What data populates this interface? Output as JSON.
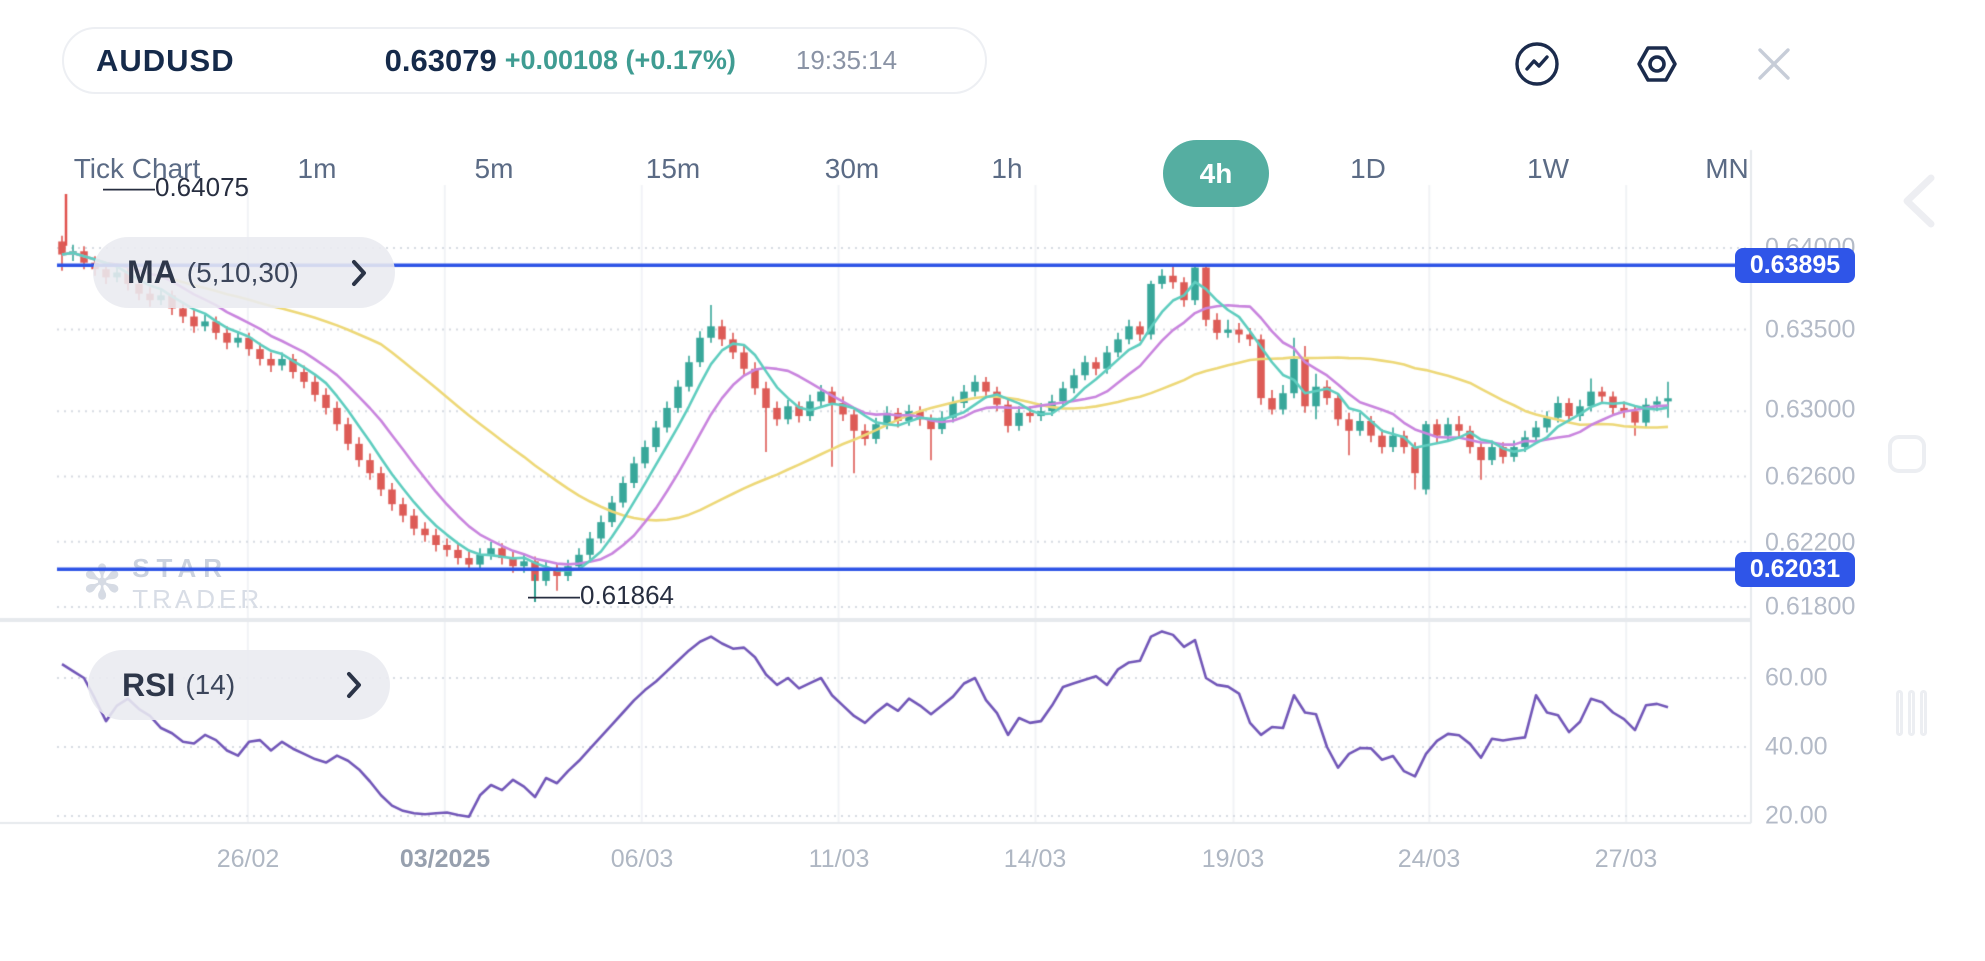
{
  "header": {
    "symbol": "AUDUSD",
    "price": "0.63079",
    "change": "+0.00108 (+0.17%)",
    "time": "19:35:14",
    "icons": [
      "trend-circle-icon",
      "settings-hex-icon",
      "close-icon"
    ]
  },
  "timeframes": {
    "items": [
      {
        "label": "Tick Chart",
        "active": false
      },
      {
        "label": "1m",
        "active": false
      },
      {
        "label": "5m",
        "active": false
      },
      {
        "label": "15m",
        "active": false
      },
      {
        "label": "30m",
        "active": false
      },
      {
        "label": "1h",
        "active": false
      },
      {
        "label": "4h",
        "active": true
      },
      {
        "label": "1D",
        "active": false
      },
      {
        "label": "1W",
        "active": false
      },
      {
        "label": "MN",
        "active": false
      }
    ]
  },
  "indicators": {
    "ma": {
      "name": "MA",
      "params": "(5,10,30)"
    },
    "rsi": {
      "name": "RSI",
      "params": "(14)"
    }
  },
  "watermark": {
    "star": "✻",
    "line1": "STAR",
    "line2": "TRADER"
  },
  "chart_data": {
    "type": "candlestick",
    "symbol": "AUDUSD",
    "timeframe": "4h",
    "annotations": {
      "high": "——0.64075",
      "low": "——0.61864",
      "high_value": 0.64075,
      "low_value": 0.61864
    },
    "price_ticks": [
      {
        "value": 0.64,
        "label": "0.64000"
      },
      {
        "value": 0.635,
        "label": "0.63500"
      },
      {
        "value": 0.63,
        "label": "0.63000"
      },
      {
        "value": 0.626,
        "label": "0.62600"
      },
      {
        "value": 0.622,
        "label": "0.62200"
      },
      {
        "value": 0.618,
        "label": "0.61800"
      }
    ],
    "h_lines": [
      {
        "value": 0.63895,
        "label": "0.63895"
      },
      {
        "value": 0.62031,
        "label": "0.62031"
      }
    ],
    "rsi_ticks": [
      {
        "value": 60,
        "label": "60.00"
      },
      {
        "value": 40,
        "label": "40.00"
      },
      {
        "value": 20,
        "label": "20.00"
      }
    ],
    "x_labels": [
      "26/02",
      "03/2025",
      "06/03",
      "11/03",
      "14/03",
      "19/03",
      "24/03",
      "27/03"
    ],
    "x_bold_index": 1,
    "x_tick_indices": [
      16.9,
      34.8,
      52.7,
      70.6,
      88.5,
      106.5,
      124.3,
      142.2
    ],
    "colors": {
      "up": "#38A79A",
      "down": "#DD5B56",
      "ma5": "#5FCDBF",
      "ma10": "#C985DE",
      "ma30": "#EDD878",
      "rsi": "#7257B8",
      "level_line": "#2E54E6",
      "grid_dot": "#D7DBE2",
      "grid_vert": "#F1F3F6",
      "axis": "#E6E9ED"
    },
    "ma_periods": [
      5,
      10,
      30
    ],
    "rsi_period": 14,
    "ohlc_fields": [
      "open",
      "high",
      "low",
      "close"
    ],
    "ohlc": [
      [
        0.6404,
        0.64075,
        0.6386,
        0.6396
      ],
      [
        0.6396,
        0.6402,
        0.6392,
        0.6398
      ],
      [
        0.6398,
        0.6401,
        0.6387,
        0.6391
      ],
      [
        0.6391,
        0.6395,
        0.6383,
        0.6387
      ],
      [
        0.6387,
        0.6391,
        0.6378,
        0.6382
      ],
      [
        0.6382,
        0.6389,
        0.6379,
        0.6385
      ],
      [
        0.6385,
        0.6388,
        0.6374,
        0.6378
      ],
      [
        0.6378,
        0.6382,
        0.6368,
        0.6372
      ],
      [
        0.6372,
        0.6376,
        0.6364,
        0.6368
      ],
      [
        0.6368,
        0.6375,
        0.6365,
        0.6371
      ],
      [
        0.6371,
        0.6374,
        0.6359,
        0.6363
      ],
      [
        0.6363,
        0.6367,
        0.6354,
        0.6358
      ],
      [
        0.6358,
        0.6362,
        0.6348,
        0.6352
      ],
      [
        0.6352,
        0.6359,
        0.6349,
        0.6355
      ],
      [
        0.6355,
        0.6358,
        0.6344,
        0.6348
      ],
      [
        0.6348,
        0.6352,
        0.6338,
        0.6342
      ],
      [
        0.6342,
        0.6349,
        0.6339,
        0.6345
      ],
      [
        0.6345,
        0.6348,
        0.6334,
        0.6338
      ],
      [
        0.6338,
        0.6342,
        0.6328,
        0.6332
      ],
      [
        0.6332,
        0.6336,
        0.6324,
        0.6328
      ],
      [
        0.6328,
        0.6336,
        0.6325,
        0.6332
      ],
      [
        0.6332,
        0.6335,
        0.632,
        0.6324
      ],
      [
        0.6324,
        0.6328,
        0.6314,
        0.6318
      ],
      [
        0.6318,
        0.6322,
        0.6306,
        0.631
      ],
      [
        0.631,
        0.6314,
        0.6298,
        0.6302
      ],
      [
        0.6302,
        0.6306,
        0.6288,
        0.6292
      ],
      [
        0.6292,
        0.6296,
        0.6276,
        0.628
      ],
      [
        0.628,
        0.6284,
        0.6266,
        0.627
      ],
      [
        0.627,
        0.6274,
        0.6258,
        0.6262
      ],
      [
        0.6262,
        0.6266,
        0.6248,
        0.6252
      ],
      [
        0.6252,
        0.6256,
        0.6239,
        0.6243
      ],
      [
        0.6243,
        0.6247,
        0.6232,
        0.6236
      ],
      [
        0.6236,
        0.624,
        0.6224,
        0.6228
      ],
      [
        0.6228,
        0.6232,
        0.622,
        0.6224
      ],
      [
        0.6224,
        0.6228,
        0.6214,
        0.6218
      ],
      [
        0.6218,
        0.6222,
        0.6211,
        0.6215
      ],
      [
        0.6215,
        0.6219,
        0.6206,
        0.621
      ],
      [
        0.621,
        0.6214,
        0.6202,
        0.6206
      ],
      [
        0.6206,
        0.6216,
        0.6203,
        0.6212
      ],
      [
        0.6212,
        0.622,
        0.6209,
        0.6216
      ],
      [
        0.6216,
        0.6219,
        0.6206,
        0.621
      ],
      [
        0.621,
        0.6214,
        0.6201,
        0.6205
      ],
      [
        0.6205,
        0.6212,
        0.6201,
        0.6208
      ],
      [
        0.6208,
        0.6211,
        0.61864,
        0.6196
      ],
      [
        0.6196,
        0.6208,
        0.6193,
        0.6204
      ],
      [
        0.6204,
        0.6207,
        0.619,
        0.6199
      ],
      [
        0.6199,
        0.6209,
        0.6196,
        0.6205
      ],
      [
        0.6205,
        0.6216,
        0.6202,
        0.6212
      ],
      [
        0.6212,
        0.6226,
        0.6209,
        0.6222
      ],
      [
        0.6222,
        0.6236,
        0.6219,
        0.6232
      ],
      [
        0.6232,
        0.6248,
        0.6229,
        0.6244
      ],
      [
        0.6244,
        0.626,
        0.6241,
        0.6256
      ],
      [
        0.6256,
        0.6272,
        0.6253,
        0.6268
      ],
      [
        0.6268,
        0.6282,
        0.6265,
        0.6278
      ],
      [
        0.6278,
        0.6294,
        0.6275,
        0.629
      ],
      [
        0.629,
        0.6306,
        0.6287,
        0.6302
      ],
      [
        0.6302,
        0.6319,
        0.6299,
        0.6315
      ],
      [
        0.6315,
        0.6334,
        0.6312,
        0.633
      ],
      [
        0.633,
        0.6349,
        0.6327,
        0.6345
      ],
      [
        0.6345,
        0.6365,
        0.6342,
        0.6352
      ],
      [
        0.6352,
        0.6356,
        0.634,
        0.6344
      ],
      [
        0.6344,
        0.6348,
        0.6332,
        0.6336
      ],
      [
        0.6336,
        0.634,
        0.6322,
        0.6326
      ],
      [
        0.6326,
        0.633,
        0.631,
        0.6314
      ],
      [
        0.6314,
        0.6318,
        0.6275,
        0.6302
      ],
      [
        0.6302,
        0.6306,
        0.6291,
        0.6295
      ],
      [
        0.6295,
        0.6307,
        0.6292,
        0.6303
      ],
      [
        0.6303,
        0.6306,
        0.6293,
        0.6297
      ],
      [
        0.6297,
        0.631,
        0.6294,
        0.6306
      ],
      [
        0.6306,
        0.6316,
        0.6303,
        0.6312
      ],
      [
        0.6312,
        0.6315,
        0.6266,
        0.6305
      ],
      [
        0.6305,
        0.6309,
        0.6294,
        0.6298
      ],
      [
        0.6298,
        0.6301,
        0.6262,
        0.6288
      ],
      [
        0.6288,
        0.6292,
        0.6279,
        0.6283
      ],
      [
        0.6283,
        0.6296,
        0.628,
        0.6292
      ],
      [
        0.6292,
        0.6303,
        0.6289,
        0.6299
      ],
      [
        0.6299,
        0.6302,
        0.629,
        0.6294
      ],
      [
        0.6294,
        0.6304,
        0.6291,
        0.63
      ],
      [
        0.63,
        0.6303,
        0.6291,
        0.6295
      ],
      [
        0.6295,
        0.6298,
        0.627,
        0.6289
      ],
      [
        0.6289,
        0.63,
        0.6286,
        0.6296
      ],
      [
        0.6296,
        0.6309,
        0.6293,
        0.6305
      ],
      [
        0.6305,
        0.6316,
        0.6302,
        0.6312
      ],
      [
        0.6312,
        0.6322,
        0.6309,
        0.6318
      ],
      [
        0.6318,
        0.6321,
        0.6308,
        0.6312
      ],
      [
        0.6312,
        0.6315,
        0.63,
        0.6304
      ],
      [
        0.6304,
        0.6307,
        0.6287,
        0.6291
      ],
      [
        0.6291,
        0.6303,
        0.6288,
        0.6299
      ],
      [
        0.6299,
        0.6303,
        0.6293,
        0.6297
      ],
      [
        0.6297,
        0.6305,
        0.6294,
        0.63
      ],
      [
        0.63,
        0.631,
        0.6297,
        0.6306
      ],
      [
        0.6306,
        0.6318,
        0.6303,
        0.6314
      ],
      [
        0.6314,
        0.6326,
        0.6311,
        0.6322
      ],
      [
        0.6322,
        0.6334,
        0.6319,
        0.633
      ],
      [
        0.633,
        0.6333,
        0.6322,
        0.6326
      ],
      [
        0.6326,
        0.634,
        0.6323,
        0.6336
      ],
      [
        0.6336,
        0.6348,
        0.6333,
        0.6344
      ],
      [
        0.6344,
        0.6356,
        0.6341,
        0.6352
      ],
      [
        0.6352,
        0.6355,
        0.6343,
        0.6347
      ],
      [
        0.6347,
        0.638,
        0.6344,
        0.6378
      ],
      [
        0.6378,
        0.6387,
        0.6375,
        0.6383
      ],
      [
        0.6383,
        0.63895,
        0.6375,
        0.6379
      ],
      [
        0.6379,
        0.6382,
        0.6364,
        0.6368
      ],
      [
        0.6368,
        0.63895,
        0.6365,
        0.6388
      ],
      [
        0.6388,
        0.639,
        0.6352,
        0.6356
      ],
      [
        0.6356,
        0.636,
        0.6344,
        0.6348
      ],
      [
        0.6348,
        0.6356,
        0.6345,
        0.635
      ],
      [
        0.635,
        0.6354,
        0.6342,
        0.6347
      ],
      [
        0.6347,
        0.6351,
        0.634,
        0.6344
      ],
      [
        0.6344,
        0.6347,
        0.6304,
        0.6308
      ],
      [
        0.6308,
        0.6313,
        0.6298,
        0.6301
      ],
      [
        0.6301,
        0.6316,
        0.6298,
        0.6311
      ],
      [
        0.6311,
        0.6345,
        0.6308,
        0.6332
      ],
      [
        0.6332,
        0.634,
        0.6299,
        0.6303
      ],
      [
        0.6303,
        0.6323,
        0.6295,
        0.6315
      ],
      [
        0.6315,
        0.6319,
        0.6304,
        0.6308
      ],
      [
        0.6308,
        0.6311,
        0.6291,
        0.6295
      ],
      [
        0.6295,
        0.6299,
        0.6273,
        0.6288
      ],
      [
        0.6288,
        0.6299,
        0.6285,
        0.6294
      ],
      [
        0.6294,
        0.6297,
        0.6281,
        0.6285
      ],
      [
        0.6285,
        0.6289,
        0.6274,
        0.6278
      ],
      [
        0.6278,
        0.629,
        0.6275,
        0.6285
      ],
      [
        0.6285,
        0.6288,
        0.6274,
        0.6278
      ],
      [
        0.6278,
        0.6281,
        0.6252,
        0.6262
      ],
      [
        0.6252,
        0.6294,
        0.6249,
        0.6292
      ],
      [
        0.6292,
        0.6295,
        0.6281,
        0.6285
      ],
      [
        0.6285,
        0.6296,
        0.6282,
        0.6292
      ],
      [
        0.6292,
        0.6297,
        0.6284,
        0.6288
      ],
      [
        0.6288,
        0.6291,
        0.6274,
        0.6278
      ],
      [
        0.6278,
        0.6281,
        0.6258,
        0.627
      ],
      [
        0.627,
        0.6282,
        0.6267,
        0.6278
      ],
      [
        0.6278,
        0.6281,
        0.6268,
        0.6272
      ],
      [
        0.6272,
        0.6282,
        0.6269,
        0.6278
      ],
      [
        0.6278,
        0.6288,
        0.6275,
        0.6284
      ],
      [
        0.6284,
        0.6294,
        0.6281,
        0.629
      ],
      [
        0.629,
        0.63,
        0.6287,
        0.6296
      ],
      [
        0.6296,
        0.6309,
        0.6293,
        0.6305
      ],
      [
        0.6305,
        0.6308,
        0.6293,
        0.6297
      ],
      [
        0.6297,
        0.6307,
        0.6294,
        0.6303
      ],
      [
        0.6303,
        0.632,
        0.63,
        0.6312
      ],
      [
        0.6312,
        0.6315,
        0.6305,
        0.6309
      ],
      [
        0.6309,
        0.6312,
        0.6298,
        0.6302
      ],
      [
        0.6302,
        0.6306,
        0.6296,
        0.63
      ],
      [
        0.63,
        0.6303,
        0.6285,
        0.6293
      ],
      [
        0.6293,
        0.6308,
        0.629,
        0.6304
      ],
      [
        0.6304,
        0.6309,
        0.63,
        0.6306
      ],
      [
        0.6306,
        0.6318,
        0.6296,
        0.63079
      ]
    ],
    "rsi": [
      64,
      62,
      60,
      54,
      47.5,
      52,
      54,
      51,
      49,
      45.5,
      44,
      41.5,
      41,
      43.5,
      42,
      39,
      37.5,
      41.5,
      42,
      39,
      41.5,
      39.5,
      38,
      36.5,
      35.5,
      37.5,
      36,
      33.5,
      30,
      26,
      23,
      21.5,
      20.8,
      20.5,
      20.8,
      21,
      20.3,
      19.8,
      26,
      29,
      27.5,
      30.5,
      28.5,
      25.5,
      31,
      29.5,
      33,
      36,
      39.5,
      43,
      46.5,
      50,
      53.5,
      56.5,
      59,
      62,
      65,
      68,
      70.5,
      72,
      70,
      68.5,
      68.8,
      66,
      61,
      58,
      60,
      57,
      58.5,
      60,
      55,
      52,
      49,
      47,
      50,
      52.5,
      50.5,
      54,
      52,
      49.5,
      52,
      54.6,
      58.4,
      60,
      53.6,
      49.8,
      43.5,
      48.4,
      47,
      47.5,
      52,
      57.4,
      58.5,
      59.5,
      60.5,
      58,
      62.5,
      64.5,
      65,
      72,
      73.5,
      72.5,
      69,
      71,
      60,
      58,
      57.5,
      55.5,
      47,
      43.5,
      45.8,
      45.5,
      55,
      50,
      49.5,
      40,
      34,
      38,
      39.7,
      39.6,
      36.3,
      37.4,
      33,
      31.5,
      38,
      41.8,
      43.8,
      43.4,
      40.9,
      36.9,
      42.4,
      41.9,
      42.4,
      42.8,
      55,
      50,
      49.2,
      44.3,
      47.3,
      54,
      53,
      50,
      48.1,
      44.9,
      52.1,
      52.5,
      51.5
    ]
  }
}
